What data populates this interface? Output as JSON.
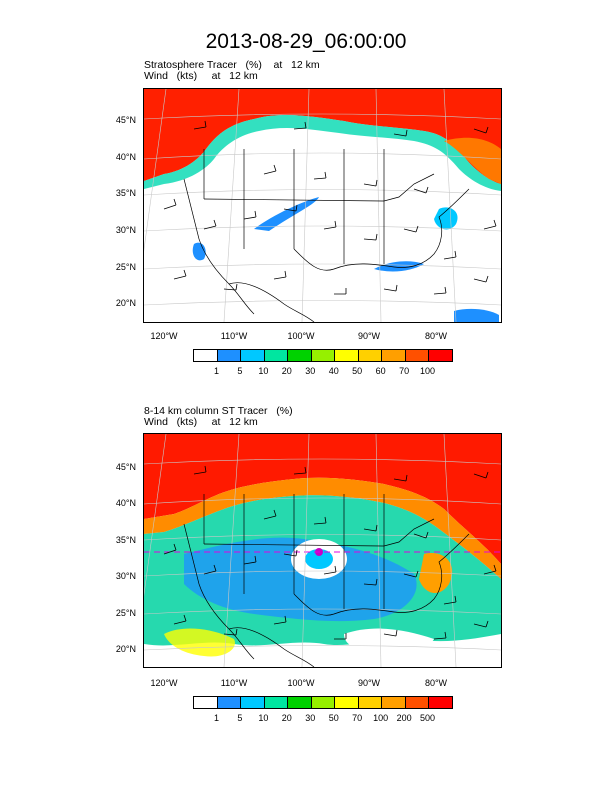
{
  "title": "2013-08-29_06:00:00",
  "panels": [
    {
      "title_line1": "Stratosphere Tracer   (%)    at   12 km",
      "title_line2": "Wind   (kts)     at   12 km",
      "lat_labels": [
        "45°N",
        "40°N",
        "35°N",
        "30°N",
        "25°N",
        "20°N"
      ],
      "lon_labels": [
        "120°W",
        "110°W",
        "100°W",
        "90°W",
        "80°W"
      ],
      "colorbar": {
        "labels": [
          "1",
          "5",
          "10",
          "20",
          "30",
          "40",
          "50",
          "60",
          "70",
          "100"
        ],
        "colors": [
          "#ffffff",
          "#1e90ff",
          "#00c8ff",
          "#00e6a0",
          "#00d200",
          "#96f000",
          "#ffff00",
          "#ffd000",
          "#ff9f00",
          "#ff5000",
          "#ff0000"
        ]
      }
    },
    {
      "title_line1": "8-14 km column ST Tracer   (%)",
      "title_line2": "Wind   (kts)     at   12 km",
      "lat_labels": [
        "45°N",
        "40°N",
        "35°N",
        "30°N",
        "25°N",
        "20°N"
      ],
      "lon_labels": [
        "120°W",
        "110°W",
        "100°W",
        "90°W",
        "80°W"
      ],
      "colorbar": {
        "labels": [
          "1",
          "5",
          "10",
          "20",
          "30",
          "50",
          "70",
          "100",
          "200",
          "500"
        ],
        "colors": [
          "#ffffff",
          "#1e90ff",
          "#00c8ff",
          "#00e6a0",
          "#00d200",
          "#96f000",
          "#ffff00",
          "#ffd000",
          "#ff9f00",
          "#ff5000",
          "#ff0000"
        ]
      }
    }
  ]
}
